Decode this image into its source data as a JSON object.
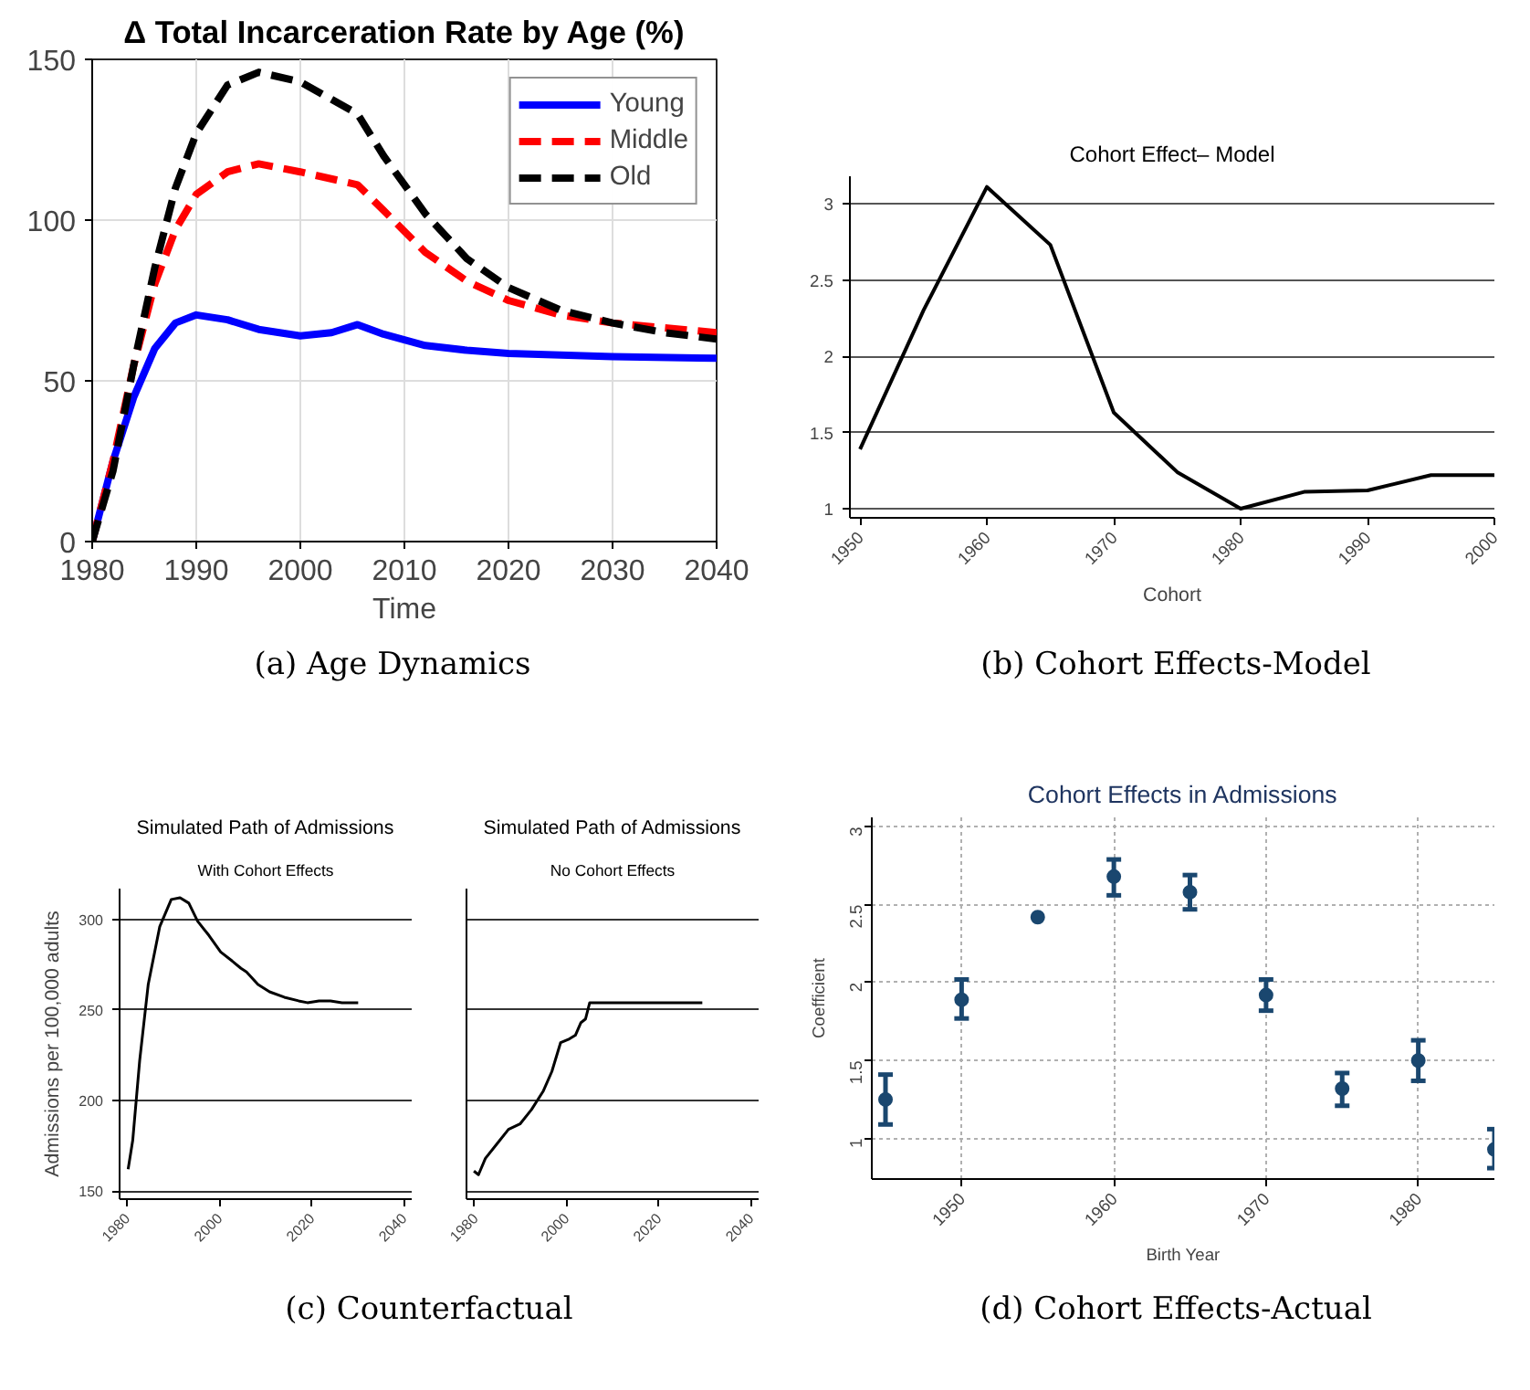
{
  "chart_data": [
    {
      "type": "line",
      "title": "Δ Total Incarceration Rate by Age (%)",
      "xlabel": "Time",
      "annotations": [
        "(a) Age Dynamics"
      ],
      "xlim": [
        1980,
        2040
      ],
      "ylim": [
        0,
        150
      ],
      "xticks": [
        1980,
        1990,
        2000,
        2010,
        2020,
        2030,
        2040
      ],
      "yticks": [
        0,
        50,
        100,
        150
      ],
      "grid": true,
      "legend": "top right",
      "series": [
        {
          "name": "Young",
          "color": "#0000ff",
          "line_style": "solid",
          "x": [
            1980,
            1982,
            1984,
            1986,
            1988,
            1990,
            1993,
            1996,
            2000,
            2003,
            2005.5,
            2008,
            2012,
            2016,
            2020,
            2030,
            2040
          ],
          "values": [
            0,
            25,
            45,
            60,
            68,
            70.5,
            69,
            66,
            64,
            65,
            67.5,
            64.5,
            61,
            59.5,
            58.5,
            57.5,
            57
          ]
        },
        {
          "name": "Middle",
          "color": "#ff0000",
          "line_style": "dashed",
          "x": [
            1980,
            1982,
            1984,
            1986,
            1988,
            1990,
            1993,
            1996,
            2000,
            2005.5,
            2008,
            2012,
            2016,
            2020,
            2025,
            2030,
            2035,
            2040
          ],
          "values": [
            0,
            25,
            55,
            80,
            97,
            108,
            115,
            117.5,
            115,
            111,
            103,
            90,
            81,
            75,
            70.5,
            68,
            66.5,
            65
          ]
        },
        {
          "name": "Old",
          "color": "#000000",
          "line_style": "dashed",
          "x": [
            1980,
            1982,
            1984,
            1986,
            1988,
            1990,
            1993,
            1996,
            2000,
            2005.5,
            2008,
            2012,
            2016,
            2020,
            2025,
            2030,
            2035,
            2040
          ],
          "values": [
            0,
            22,
            55,
            85,
            110,
            127,
            142,
            146,
            143,
            133,
            120,
            102,
            88,
            79,
            72,
            68,
            65,
            63
          ]
        }
      ]
    },
    {
      "type": "line",
      "title": "Cohort Effect– Model",
      "xlabel": "Cohort",
      "annotations": [
        "(b) Cohort Effects-Model"
      ],
      "xlim": [
        1949.2,
        2000
      ],
      "ylim": [
        0.94,
        3.18
      ],
      "xticks": [
        1950,
        1960,
        1970,
        1980,
        1990,
        2000
      ],
      "yticks": [
        1,
        1.5,
        2,
        2.5,
        3
      ],
      "grid": "y",
      "series": [
        {
          "color": "#000000",
          "line_style": "solid",
          "x": [
            1950,
            1955,
            1960,
            1965,
            1970,
            1975,
            1980,
            1985,
            1990,
            1995,
            2000
          ],
          "values": [
            1.39,
            2.3,
            3.11,
            2.73,
            1.63,
            1.24,
            1.0,
            1.11,
            1.12,
            1.22,
            1.22
          ]
        }
      ]
    },
    {
      "type": "line",
      "title": "Simulated Path of Admissions",
      "subtitle": "With Cohort Effects",
      "ylabel": "Admissions per 100,000 adults",
      "annotations": [
        "(c) Counterfactual"
      ],
      "xlim": [
        1978.4,
        2041.7
      ],
      "ylim": [
        145.5,
        317
      ],
      "xticks": [
        1980,
        2000,
        2020,
        2040
      ],
      "yticks": [
        150,
        200,
        250,
        300
      ],
      "grid": "y",
      "series": [
        {
          "color": "#000000",
          "line_style": "solid",
          "x": [
            1980.25,
            1981.25,
            1982.75,
            1984.6,
            1987.1,
            1989.6,
            1991.5,
            1993.4,
            1995.3,
            1997.8,
            2000.3,
            2002.8,
            2004.7,
            2005.9,
            2008.4,
            2010.9,
            2014.1,
            2017.2,
            2019.1,
            2021.6,
            2024.1,
            2026.6,
            2030.1
          ],
          "values": [
            162,
            178,
            222,
            264,
            296,
            311,
            312,
            309,
            299,
            291,
            282,
            277,
            273,
            271,
            264,
            260,
            257,
            255,
            254,
            255,
            255,
            254,
            254
          ]
        }
      ]
    },
    {
      "type": "line",
      "title": "Simulated Path of Admissions",
      "subtitle": "No Cohort Effects",
      "tick_labels": "x",
      "xlim": [
        1978.4,
        2041.7
      ],
      "ylim": [
        145.5,
        317
      ],
      "xticks": [
        1980,
        2000,
        2020,
        2040
      ],
      "yticks": [
        150,
        200,
        250,
        300
      ],
      "grid": "y",
      "series": [
        {
          "color": "#000000",
          "line_style": "solid",
          "x": [
            1980,
            1981,
            1982.5,
            1985,
            1987.5,
            1990,
            1992.5,
            1995,
            1996.9,
            1998.8,
            2000.7,
            2002,
            2003.2,
            2004.2,
            2005.1,
            2010.1,
            2029.5
          ],
          "values": [
            161,
            159,
            168,
            176,
            184,
            187,
            195,
            205,
            216,
            232,
            234,
            236,
            243,
            245,
            254,
            254,
            254
          ]
        }
      ]
    },
    {
      "type": "scatter",
      "title": "Cohort Effects in Admissions",
      "xlabel": "Birth Year",
      "ylabel": "Coefficient",
      "annotations": [
        "(d) Cohort Effects-Actual"
      ],
      "xlim": [
        1944.1,
        1985
      ],
      "ylim": [
        0.74,
        3.06
      ],
      "xticks": [
        1950,
        1960,
        1970,
        1980
      ],
      "yticks": [
        1,
        1.5,
        2,
        2.5,
        3
      ],
      "grid": true,
      "marker": "circle",
      "series": [
        {
          "color": "#1a476f",
          "x": [
            1945,
            1950,
            1955,
            1960,
            1965,
            1970,
            1975,
            1980,
            1985
          ],
          "values": [
            1.25,
            1.89,
            2.42,
            2.68,
            2.58,
            1.92,
            1.32,
            1.5,
            0.93
          ],
          "errors": [
            [
              1.09,
              1.41
            ],
            [
              1.77,
              2.02
            ],
            null,
            [
              2.56,
              2.79
            ],
            [
              2.47,
              2.69
            ],
            [
              1.82,
              2.02
            ],
            [
              1.21,
              1.42
            ],
            [
              1.37,
              1.63
            ],
            [
              0.81,
              1.06
            ]
          ]
        }
      ]
    }
  ]
}
